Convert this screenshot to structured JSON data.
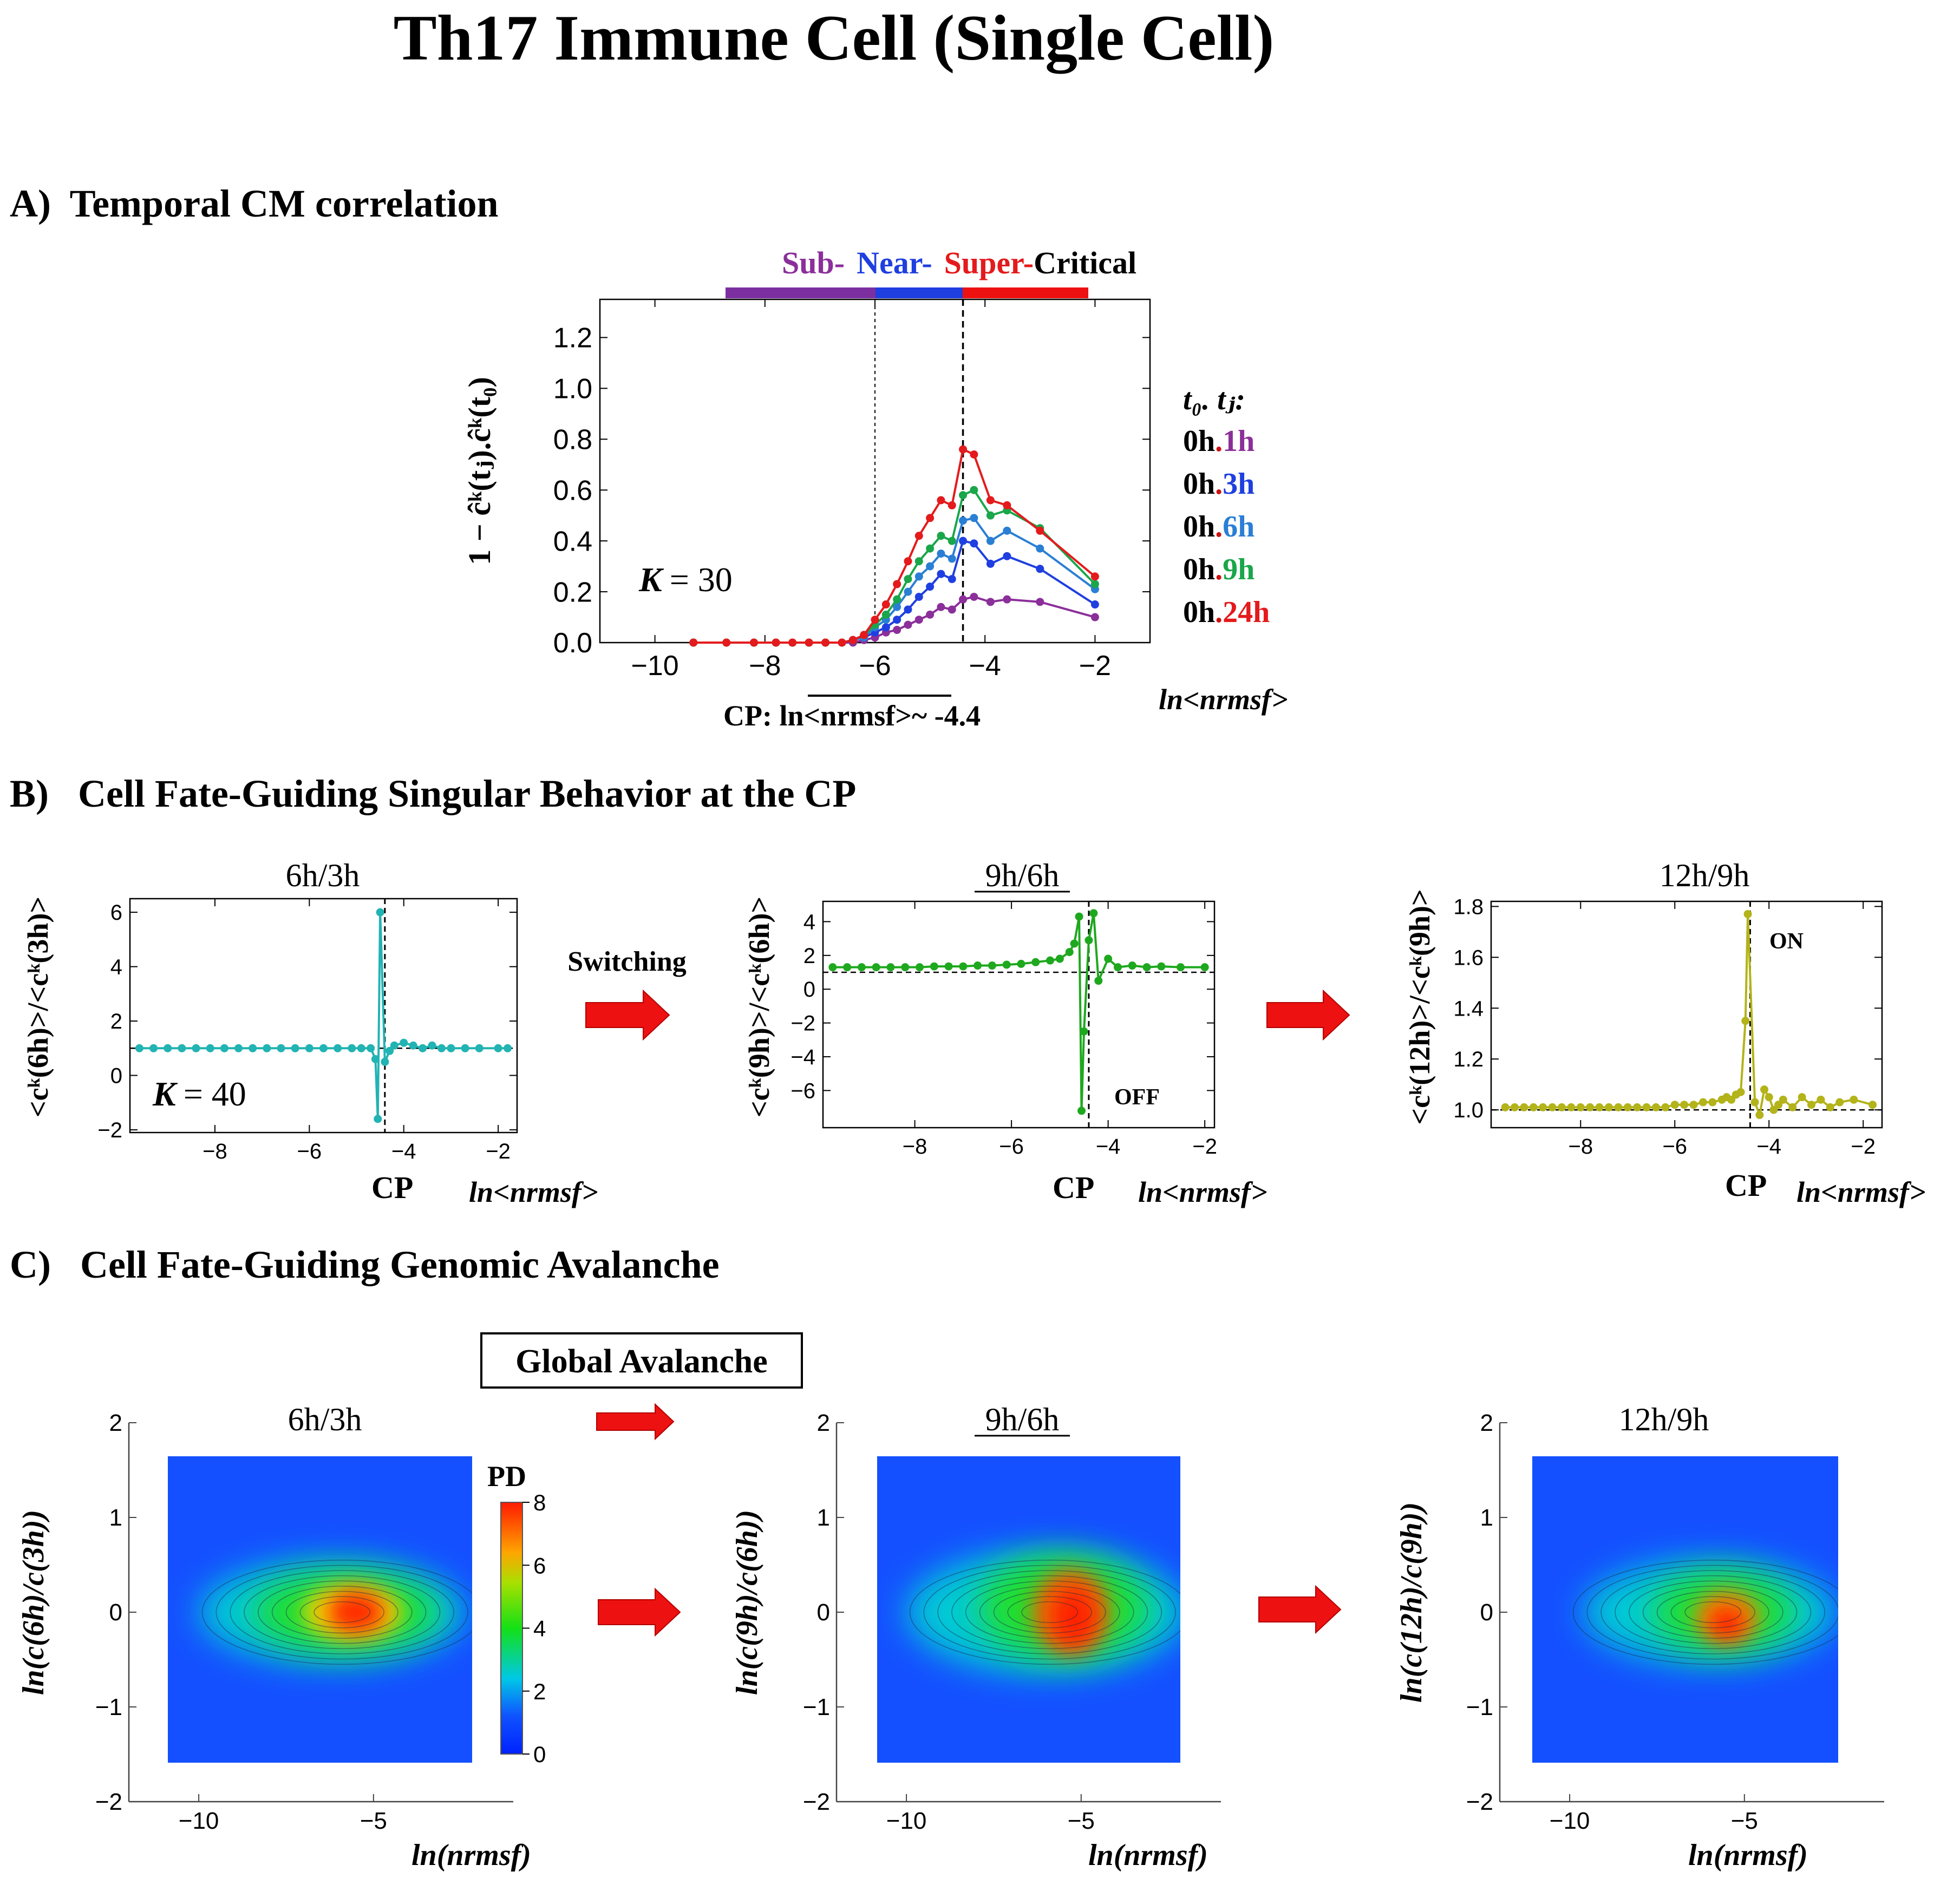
{
  "page": {
    "title": "Th17 Immune Cell (Single Cell)"
  },
  "panelA": {
    "heading": "A)  Temporal CM correlation",
    "regime": {
      "sub": "Sub-",
      "near": "Near-",
      "super": "Super-",
      "critical": "Critical"
    },
    "ylabel": "1 − ĉᵏ(tⱼ).ĉᵏ(t₀)",
    "k_label": "K",
    "k_value": "= 30",
    "cp_label": "CP: ln<nrmsf>~ -4.4",
    "xunit": "ln<nrmsf>",
    "legend_title": "t₀. tⱼ:",
    "legend": [
      {
        "prefix": "0h",
        "sep": ".",
        "suffix": "1h",
        "color": "#8b2f9a"
      },
      {
        "prefix": "0h",
        "sep": ".",
        "suffix": "3h",
        "color": "#1f3fe0"
      },
      {
        "prefix": "0h",
        "sep": ".",
        "suffix": "6h",
        "color": "#2a7fd4"
      },
      {
        "prefix": "0h",
        "sep": ".",
        "suffix": "9h",
        "color": "#1aa64a"
      },
      {
        "prefix": "0h",
        "sep": ".",
        "suffix": "24h",
        "color": "#e41a1c"
      }
    ]
  },
  "panelB": {
    "heading": "B)   Cell Fate-Guiding Singular Behavior at the CP",
    "switching": "Switching",
    "cp": "CP",
    "xunit": "ln<nrmsf>",
    "plots": [
      {
        "title": "6h/3h",
        "ylabel": "<cᵏ(6h)>/<cᵏ(3h)>",
        "k_label": "K",
        "k_value": "= 40",
        "color": "#22b3b3"
      },
      {
        "title": "9h/6h",
        "ylabel": "<cᵏ(9h)>/<cᵏ(6h)>",
        "note": "OFF",
        "color": "#1ea81e"
      },
      {
        "title": "12h/9h",
        "ylabel": "<cᵏ(12h)>/<cᵏ(9h)>",
        "note": "ON",
        "color": "#b3b31a"
      }
    ]
  },
  "panelC": {
    "heading": "C)   Cell Fate-Guiding Genomic Avalanche",
    "global_avalanche": "Global Avalanche",
    "colorbar_label": "PD",
    "colorbar_ticks": [
      "0",
      "2",
      "4",
      "6",
      "8"
    ],
    "xlabel": "ln(nrmsf)",
    "plots": [
      {
        "title": "6h/3h",
        "ylabel": "ln(c(6h)/c(3h))"
      },
      {
        "title": "9h/6h",
        "ylabel": "ln(c(9h)/c(6h))"
      },
      {
        "title": "12h/9h",
        "ylabel": "ln(c(12h)/c(9h))"
      }
    ]
  },
  "chart_data": [
    {
      "type": "line",
      "id": "A",
      "xlim": [
        -11,
        -1
      ],
      "ylim": [
        0,
        1.35
      ],
      "xticks": [
        -10,
        -8,
        -6,
        -4,
        -2
      ],
      "yticks": [
        0.0,
        0.2,
        0.4,
        0.6,
        0.8,
        1.0,
        1.2
      ],
      "vlines": [
        -6.0,
        -4.4
      ],
      "x": [
        -9.3,
        -8.7,
        -8.2,
        -7.8,
        -7.5,
        -7.2,
        -6.9,
        -6.6,
        -6.4,
        -6.2,
        -6.0,
        -5.8,
        -5.6,
        -5.4,
        -5.2,
        -5.0,
        -4.8,
        -4.6,
        -4.4,
        -4.2,
        -3.9,
        -3.6,
        -3.0,
        -2.0
      ],
      "series": [
        {
          "name": "0h.1h",
          "values": [
            0.0,
            0.0,
            0.0,
            0.0,
            0.0,
            0.0,
            0.0,
            0.0,
            0.0,
            0.01,
            0.02,
            0.04,
            0.05,
            0.07,
            0.09,
            0.11,
            0.14,
            0.13,
            0.17,
            0.18,
            0.16,
            0.17,
            0.16,
            0.1
          ]
        },
        {
          "name": "0h.3h",
          "values": [
            0.0,
            0.0,
            0.0,
            0.0,
            0.0,
            0.0,
            0.0,
            0.0,
            0.01,
            0.02,
            0.04,
            0.06,
            0.09,
            0.13,
            0.18,
            0.22,
            0.27,
            0.25,
            0.4,
            0.39,
            0.31,
            0.34,
            0.29,
            0.15
          ]
        },
        {
          "name": "0h.6h",
          "values": [
            0.0,
            0.0,
            0.0,
            0.0,
            0.0,
            0.0,
            0.0,
            0.0,
            0.01,
            0.02,
            0.06,
            0.09,
            0.14,
            0.2,
            0.26,
            0.3,
            0.35,
            0.33,
            0.48,
            0.49,
            0.4,
            0.44,
            0.37,
            0.21
          ]
        },
        {
          "name": "0h.9h",
          "values": [
            0.0,
            0.0,
            0.0,
            0.0,
            0.0,
            0.0,
            0.0,
            0.0,
            0.01,
            0.03,
            0.07,
            0.11,
            0.17,
            0.25,
            0.32,
            0.37,
            0.42,
            0.4,
            0.58,
            0.6,
            0.5,
            0.52,
            0.45,
            0.23
          ]
        },
        {
          "name": "0h.24h",
          "values": [
            0.0,
            0.0,
            0.0,
            0.0,
            0.0,
            0.0,
            0.0,
            0.0,
            0.01,
            0.03,
            0.09,
            0.15,
            0.23,
            0.32,
            0.42,
            0.49,
            0.56,
            0.54,
            0.76,
            0.74,
            0.56,
            0.54,
            0.44,
            0.26
          ]
        }
      ]
    },
    {
      "type": "line",
      "id": "B1",
      "xlim": [
        -9.8,
        -1.6
      ],
      "ylim": [
        -2.1,
        6.5
      ],
      "xticks": [
        -8,
        -6,
        -4,
        -2
      ],
      "yticks": [
        -2,
        0,
        2,
        4,
        6
      ],
      "vline": -4.4,
      "hline": 1.0,
      "x": [
        -9.6,
        -9.3,
        -9.0,
        -8.7,
        -8.4,
        -8.1,
        -7.8,
        -7.5,
        -7.2,
        -6.9,
        -6.6,
        -6.3,
        -6.0,
        -5.7,
        -5.4,
        -5.1,
        -4.9,
        -4.7,
        -4.6,
        -4.55,
        -4.5,
        -4.4,
        -4.3,
        -4.2,
        -4.0,
        -3.8,
        -3.6,
        -3.4,
        -3.2,
        -3.0,
        -2.7,
        -2.4,
        -2.0,
        -1.8
      ],
      "values": [
        1.0,
        1.0,
        1.0,
        1.0,
        1.0,
        1.0,
        1.0,
        1.0,
        1.0,
        1.0,
        1.0,
        1.0,
        1.0,
        1.0,
        1.0,
        1.0,
        1.0,
        1.0,
        0.6,
        -1.6,
        6.0,
        0.5,
        0.9,
        1.1,
        1.2,
        1.1,
        1.0,
        1.1,
        1.0,
        1.0,
        1.0,
        1.0,
        1.0,
        1.0
      ]
    },
    {
      "type": "line",
      "id": "B2",
      "xlim": [
        -9.9,
        -1.8
      ],
      "ylim": [
        -8.2,
        5.2
      ],
      "xticks": [
        -8,
        -6,
        -4,
        -2
      ],
      "yticks": [
        -6,
        -4,
        -2,
        0,
        2,
        4
      ],
      "vline": -4.4,
      "hline": 1.0,
      "x": [
        -9.7,
        -9.4,
        -9.1,
        -8.8,
        -8.5,
        -8.2,
        -7.9,
        -7.6,
        -7.3,
        -7.0,
        -6.7,
        -6.4,
        -6.1,
        -5.8,
        -5.5,
        -5.2,
        -5.0,
        -4.8,
        -4.7,
        -4.6,
        -4.55,
        -4.5,
        -4.4,
        -4.3,
        -4.2,
        -4.0,
        -3.8,
        -3.5,
        -3.2,
        -2.9,
        -2.5,
        -2.0
      ],
      "values": [
        1.3,
        1.3,
        1.3,
        1.3,
        1.3,
        1.3,
        1.3,
        1.35,
        1.35,
        1.35,
        1.4,
        1.4,
        1.45,
        1.5,
        1.6,
        1.7,
        1.8,
        2.2,
        2.7,
        4.3,
        -7.2,
        -2.5,
        2.9,
        4.5,
        0.5,
        1.8,
        1.3,
        1.4,
        1.3,
        1.35,
        1.3,
        1.3
      ]
    },
    {
      "type": "line",
      "id": "B3",
      "xlim": [
        -9.9,
        -1.6
      ],
      "ylim": [
        0.93,
        1.82
      ],
      "xticks": [
        -8,
        -6,
        -4,
        -2
      ],
      "yticks": [
        1.0,
        1.2,
        1.4,
        1.6,
        1.8
      ],
      "vline": -4.4,
      "hline": 1.0,
      "x": [
        -9.6,
        -9.4,
        -9.2,
        -9.0,
        -8.8,
        -8.6,
        -8.4,
        -8.2,
        -8.0,
        -7.8,
        -7.6,
        -7.4,
        -7.2,
        -7.0,
        -6.8,
        -6.6,
        -6.4,
        -6.2,
        -6.0,
        -5.8,
        -5.6,
        -5.4,
        -5.2,
        -5.0,
        -4.9,
        -4.8,
        -4.7,
        -4.6,
        -4.5,
        -4.45,
        -4.3,
        -4.2,
        -4.1,
        -4.0,
        -3.9,
        -3.8,
        -3.7,
        -3.5,
        -3.3,
        -3.1,
        -2.9,
        -2.7,
        -2.5,
        -2.2,
        -1.8
      ],
      "values": [
        1.01,
        1.01,
        1.01,
        1.01,
        1.01,
        1.01,
        1.01,
        1.01,
        1.01,
        1.01,
        1.01,
        1.01,
        1.01,
        1.01,
        1.01,
        1.01,
        1.01,
        1.01,
        1.02,
        1.02,
        1.02,
        1.03,
        1.03,
        1.04,
        1.05,
        1.04,
        1.06,
        1.07,
        1.35,
        1.77,
        1.03,
        0.98,
        1.08,
        1.05,
        1.0,
        1.02,
        1.04,
        1.01,
        1.05,
        1.02,
        1.04,
        1.01,
        1.03,
        1.04,
        1.02
      ]
    },
    {
      "type": "heatmap",
      "id": "C",
      "xlim": [
        -12,
        -1
      ],
      "ylim": [
        -2,
        2
      ],
      "xticks": [
        -10,
        -5
      ],
      "yticks": [
        -2,
        -1,
        0,
        1,
        2
      ],
      "colorbar_range": [
        0,
        8
      ]
    }
  ]
}
